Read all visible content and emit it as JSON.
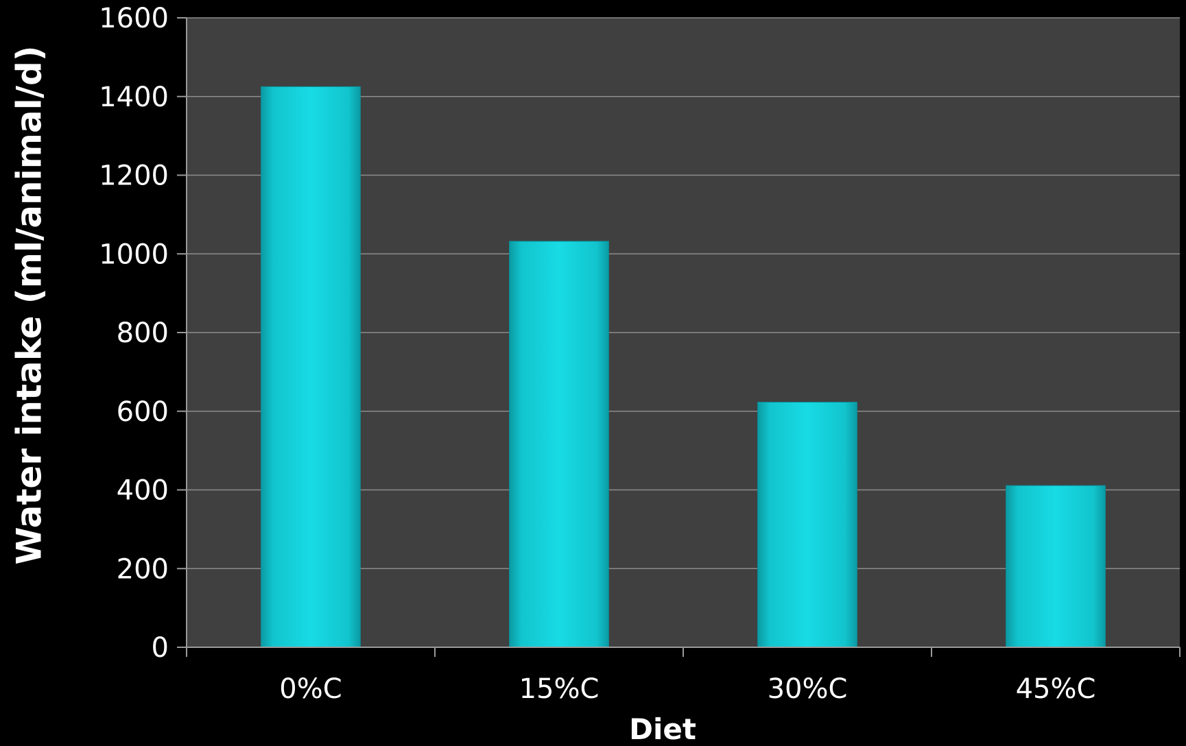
{
  "chart_data": {
    "type": "bar",
    "title": "",
    "xlabel": "Diet",
    "ylabel": "Water intake (ml/animal/d)",
    "categories": [
      "0%C",
      "15%C",
      "30%C",
      "45%C"
    ],
    "values": [
      1425,
      1032,
      623,
      411
    ],
    "ylim": [
      0,
      1600
    ],
    "yticks": [
      0,
      200,
      400,
      600,
      800,
      1000,
      1200,
      1400,
      1600
    ],
    "grid": true,
    "legend": "none"
  },
  "colors": {
    "page_background": "#000000",
    "plot_background": "#404040",
    "gridline": "#8c8c8c",
    "axis": "#9a9a9a",
    "bar": "#14d4dc",
    "bar_edge": "#0a8f99",
    "text": "#ffffff"
  }
}
